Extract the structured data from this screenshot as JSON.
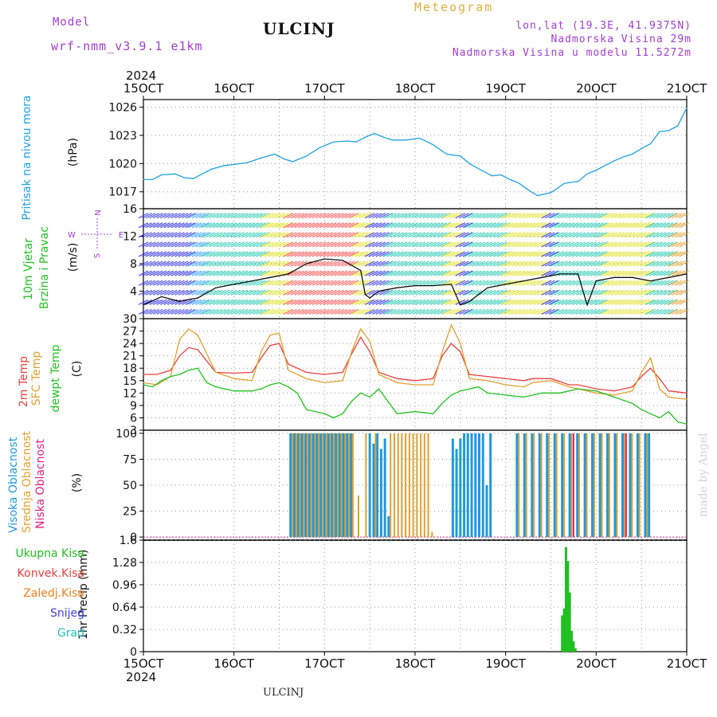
{
  "header": {
    "model_label": "Model",
    "model_name": "wrf-nmm_v3.9.1 e1km",
    "station": "ULCINJ",
    "title": "Meteogram",
    "coords": "lon,lat (19.3E, 41.9375N)",
    "elevation": "Nadmorska Visina 29m",
    "model_elevation": "Nadmorska Visina u modelu 11.5272m"
  },
  "footer": {
    "station": "ULCINJ",
    "signature": "made by Angel"
  },
  "x_axis": {
    "year": "2024",
    "ticks": [
      "15OCT",
      "16OCT",
      "17OCT",
      "18OCT",
      "19OCT",
      "20OCT",
      "21OCT"
    ],
    "start_day": 15,
    "end_day": 21
  },
  "panel_labels": {
    "pressure_name": "Pritisak na nivou mora",
    "pressure_unit": "(hPa)",
    "wind_line1": "10m Vjetar",
    "wind_line2": "Brzina i Pravac",
    "wind_unit": "(m/s)",
    "compass_n": "N",
    "compass_e": "E",
    "compass_w": "W",
    "compass_s": "S",
    "temp_2m": "2m Temp",
    "temp_sfc": "SFC Temp",
    "temp_dew": "dewpt Temp",
    "temp_unit": "(C)",
    "cloud_high": "Visoka Oblacnost",
    "cloud_mid": "Srednja Oblacnost",
    "cloud_low": "Niska Oblacnost",
    "cloud_unit": "(%)",
    "precip_unit": "1hr Precip (mm)",
    "precip_legend": [
      "Ukupna Kisa",
      "Konvek.Kisa",
      "Zaledj.Kisa",
      "Snijeg",
      "Grad"
    ]
  },
  "colors": {
    "pressure": "#1fa0e0",
    "temp_2m": "#e84040",
    "temp_sfc": "#e0a030",
    "temp_dew": "#20c020",
    "cloud_high": "#1f98e0",
    "cloud_mid": "#e0a030",
    "cloud_low": "#e02080",
    "precip_total": "#20c020",
    "precip_conv": "#e84040",
    "precip_frz": "#f08020",
    "precip_snow": "#4040e0",
    "precip_hail": "#20c0c0"
  },
  "chart_data": [
    {
      "type": "line",
      "name": "pressure",
      "ylabel": "(hPa)",
      "ylim": [
        1015.2,
        1026.8
      ],
      "yticks": [
        1017,
        1020,
        1023,
        1026
      ],
      "grid": true,
      "series": [
        {
          "name": "Pritisak na nivou mora",
          "x": [
            15.0,
            15.1,
            15.2,
            15.35,
            15.45,
            15.55,
            15.65,
            15.75,
            15.9,
            16.0,
            16.15,
            16.3,
            16.45,
            16.55,
            16.65,
            16.8,
            16.95,
            17.1,
            17.25,
            17.35,
            17.45,
            17.55,
            17.65,
            17.75,
            17.9,
            18.05,
            18.2,
            18.35,
            18.5,
            18.6,
            18.75,
            18.85,
            18.95,
            19.05,
            19.15,
            19.25,
            19.35,
            19.5,
            19.65,
            19.8,
            19.9,
            20.0,
            20.1,
            20.2,
            20.3,
            20.4,
            20.5,
            20.6,
            20.7,
            20.8,
            20.9,
            21.0
          ],
          "y": [
            1018.3,
            1018.3,
            1018.8,
            1018.9,
            1018.5,
            1018.4,
            1018.9,
            1019.4,
            1019.8,
            1019.9,
            1020.1,
            1020.6,
            1021.0,
            1020.5,
            1020.2,
            1020.8,
            1021.7,
            1022.3,
            1022.4,
            1022.3,
            1022.8,
            1023.2,
            1022.8,
            1022.5,
            1022.5,
            1022.7,
            1022.0,
            1021.0,
            1020.8,
            1020.0,
            1019.2,
            1018.7,
            1018.8,
            1018.3,
            1017.9,
            1017.2,
            1016.6,
            1016.9,
            1017.9,
            1018.1,
            1018.9,
            1019.3,
            1019.8,
            1020.3,
            1020.7,
            1021.0,
            1021.6,
            1022.1,
            1023.4,
            1023.5,
            1024.0,
            1025.9
          ]
        }
      ]
    },
    {
      "type": "line",
      "name": "wind",
      "ylabel": "(m/s)",
      "ylim": [
        0,
        16
      ],
      "yticks": [
        0,
        4,
        8,
        12,
        16
      ],
      "grid": true,
      "series": [
        {
          "name": "10m Vjetar",
          "x": [
            15.0,
            15.2,
            15.4,
            15.5,
            15.6,
            15.8,
            16.0,
            16.2,
            16.4,
            16.6,
            16.8,
            17.0,
            17.2,
            17.4,
            17.45,
            17.5,
            17.6,
            17.8,
            18.0,
            18.2,
            18.4,
            18.5,
            18.6,
            18.8,
            19.0,
            19.2,
            19.4,
            19.6,
            19.8,
            19.9,
            20.0,
            20.2,
            20.4,
            20.6,
            20.8,
            21.0
          ],
          "y": [
            2.0,
            3.2,
            2.5,
            2.8,
            3.0,
            4.5,
            5.0,
            5.5,
            6.0,
            6.5,
            8.0,
            8.7,
            8.5,
            7.0,
            3.5,
            3.0,
            4.0,
            4.5,
            4.8,
            4.8,
            5.0,
            2.0,
            2.5,
            4.5,
            5.0,
            5.5,
            6.0,
            6.5,
            6.5,
            2.0,
            5.5,
            6.0,
            6.0,
            5.5,
            6.0,
            6.5
          ]
        }
      ]
    },
    {
      "type": "line",
      "name": "temperature",
      "ylabel": "(C)",
      "ylim": [
        3,
        30
      ],
      "yticks": [
        3,
        6,
        9,
        12,
        15,
        18,
        21,
        24,
        27,
        30
      ],
      "grid": true,
      "series": [
        {
          "name": "2m Temp",
          "x": [
            15.0,
            15.15,
            15.3,
            15.4,
            15.5,
            15.6,
            15.8,
            16.0,
            16.2,
            16.3,
            16.4,
            16.5,
            16.6,
            16.8,
            17.0,
            17.2,
            17.3,
            17.4,
            17.5,
            17.6,
            17.8,
            18.0,
            18.2,
            18.3,
            18.4,
            18.5,
            18.6,
            18.8,
            19.0,
            19.2,
            19.3,
            19.5,
            19.7,
            19.8,
            20.0,
            20.2,
            20.4,
            20.5,
            20.6,
            20.7,
            20.8,
            21.0
          ],
          "y": [
            16.5,
            16.5,
            17.5,
            21.0,
            23.0,
            22.5,
            17.0,
            16.8,
            17.0,
            20.5,
            23.5,
            24.0,
            19.0,
            17.0,
            16.5,
            17.0,
            21.5,
            25.5,
            22.0,
            17.0,
            15.5,
            15.0,
            15.5,
            21.0,
            24.0,
            22.0,
            16.5,
            16.0,
            15.5,
            15.0,
            15.5,
            15.5,
            14.0,
            14.0,
            13.0,
            12.5,
            13.5,
            16.0,
            18.0,
            15.5,
            12.5,
            12.0
          ]
        },
        {
          "name": "SFC Temp",
          "x": [
            15.0,
            15.15,
            15.3,
            15.4,
            15.5,
            15.6,
            15.8,
            16.0,
            16.2,
            16.3,
            16.4,
            16.5,
            16.6,
            16.8,
            17.0,
            17.2,
            17.3,
            17.4,
            17.5,
            17.6,
            17.8,
            18.0,
            18.2,
            18.3,
            18.4,
            18.5,
            18.6,
            18.8,
            19.0,
            19.2,
            19.3,
            19.5,
            19.7,
            19.8,
            20.0,
            20.2,
            20.4,
            20.5,
            20.6,
            20.7,
            20.8,
            21.0
          ],
          "y": [
            14.5,
            14.0,
            16.0,
            25.0,
            27.5,
            26.0,
            17.0,
            15.5,
            15.0,
            22.0,
            26.0,
            26.5,
            17.5,
            15.5,
            14.5,
            15.0,
            22.0,
            27.5,
            24.5,
            16.5,
            14.5,
            14.0,
            14.0,
            22.0,
            28.5,
            24.0,
            15.5,
            15.0,
            14.0,
            13.5,
            14.5,
            15.0,
            13.5,
            13.0,
            12.0,
            11.5,
            12.5,
            17.0,
            20.5,
            13.0,
            11.0,
            10.5
          ]
        },
        {
          "name": "dewpt Temp",
          "x": [
            15.0,
            15.1,
            15.2,
            15.3,
            15.4,
            15.5,
            15.6,
            15.7,
            15.8,
            16.0,
            16.2,
            16.3,
            16.4,
            16.5,
            16.6,
            16.7,
            16.8,
            17.0,
            17.1,
            17.2,
            17.3,
            17.4,
            17.5,
            17.6,
            17.7,
            17.8,
            18.0,
            18.2,
            18.3,
            18.4,
            18.5,
            18.6,
            18.7,
            18.8,
            19.0,
            19.2,
            19.4,
            19.6,
            19.8,
            20.0,
            20.2,
            20.4,
            20.5,
            20.6,
            20.7,
            20.8,
            20.9,
            21.0
          ],
          "y": [
            14.0,
            13.5,
            15.0,
            16.0,
            16.5,
            17.5,
            18.0,
            14.5,
            13.5,
            12.5,
            12.5,
            13.0,
            14.0,
            14.5,
            13.5,
            12.0,
            8.0,
            7.0,
            6.0,
            7.0,
            10.0,
            12.0,
            11.0,
            13.0,
            10.0,
            7.0,
            7.5,
            7.0,
            9.5,
            11.5,
            12.5,
            13.0,
            13.5,
            12.0,
            11.5,
            11.0,
            12.0,
            12.0,
            13.0,
            12.5,
            11.0,
            9.5,
            8.0,
            7.0,
            6.0,
            7.5,
            5.0,
            4.5
          ]
        }
      ]
    },
    {
      "type": "bar",
      "name": "cloud_cover",
      "ylabel": "(%)",
      "ylim": [
        0,
        100
      ],
      "yticks": [
        0,
        25,
        50,
        75,
        100
      ],
      "grid": true,
      "series": [
        {
          "name": "Visoka Oblacnost",
          "x": [
            16.625,
            16.667,
            16.708,
            16.75,
            16.792,
            16.833,
            16.875,
            16.917,
            16.958,
            17.0,
            17.042,
            17.083,
            17.125,
            17.167,
            17.208,
            17.25,
            17.292,
            17.5,
            17.542,
            17.583,
            17.625,
            17.667,
            17.708,
            18.417,
            18.458,
            18.5,
            18.542,
            18.583,
            18.625,
            18.667,
            18.708,
            18.75,
            18.792,
            18.833,
            19.125,
            19.208,
            19.292,
            19.375,
            19.458,
            19.542,
            19.625,
            19.708,
            19.792,
            19.875,
            19.958,
            20.042,
            20.125,
            20.208,
            20.292,
            20.375,
            20.458,
            20.542,
            20.583
          ],
          "y": [
            100,
            100,
            100,
            100,
            100,
            100,
            100,
            100,
            100,
            100,
            100,
            100,
            100,
            100,
            100,
            100,
            100,
            100,
            90,
            100,
            85,
            95,
            20,
            95,
            85,
            95,
            100,
            100,
            100,
            100,
            100,
            100,
            50,
            100,
            100,
            100,
            100,
            100,
            100,
            100,
            100,
            100,
            100,
            100,
            100,
            100,
            100,
            100,
            100,
            100,
            100,
            100,
            100
          ]
        },
        {
          "name": "Srednja Oblacnost",
          "x": [
            16.646,
            16.688,
            16.729,
            16.771,
            16.813,
            16.854,
            16.896,
            16.938,
            16.979,
            17.021,
            17.063,
            17.104,
            17.146,
            17.188,
            17.229,
            17.271,
            17.313,
            17.375,
            17.458,
            17.563,
            17.729,
            17.771,
            17.813,
            17.854,
            17.896,
            17.938,
            17.979,
            18.021,
            18.063,
            18.104,
            18.146,
            18.188,
            19.146,
            19.229,
            19.313,
            19.396,
            19.479,
            19.563,
            19.646,
            19.729,
            19.813,
            19.896,
            19.979,
            20.063,
            20.146,
            20.229,
            20.313,
            20.396,
            20.479,
            20.563
          ],
          "y": [
            100,
            100,
            100,
            100,
            100,
            100,
            100,
            100,
            100,
            100,
            100,
            100,
            100,
            100,
            100,
            100,
            100,
            40,
            100,
            100,
            100,
            100,
            100,
            100,
            100,
            100,
            100,
            100,
            100,
            100,
            100,
            5,
            100,
            100,
            100,
            100,
            100,
            100,
            100,
            100,
            100,
            100,
            100,
            100,
            100,
            100,
            100,
            100,
            100,
            100
          ]
        },
        {
          "name": "Niska Oblacnost",
          "x": [
            19.75,
            20.33
          ],
          "y": [
            100,
            100
          ]
        }
      ]
    },
    {
      "type": "bar",
      "name": "precipitation",
      "ylabel": "1hr Precip (mm)",
      "ylim": [
        0,
        1.6
      ],
      "yticks": [
        0,
        0.32,
        0.64,
        0.96,
        1.28,
        1.6
      ],
      "grid": true,
      "series": [
        {
          "name": "Ukupna Kisa",
          "x": [
            19.625,
            19.646,
            19.667,
            19.688,
            19.708,
            19.729,
            19.75,
            19.771
          ],
          "y": [
            0.52,
            0.62,
            1.5,
            1.3,
            0.85,
            0.3,
            0.15,
            0.05
          ]
        }
      ]
    }
  ]
}
